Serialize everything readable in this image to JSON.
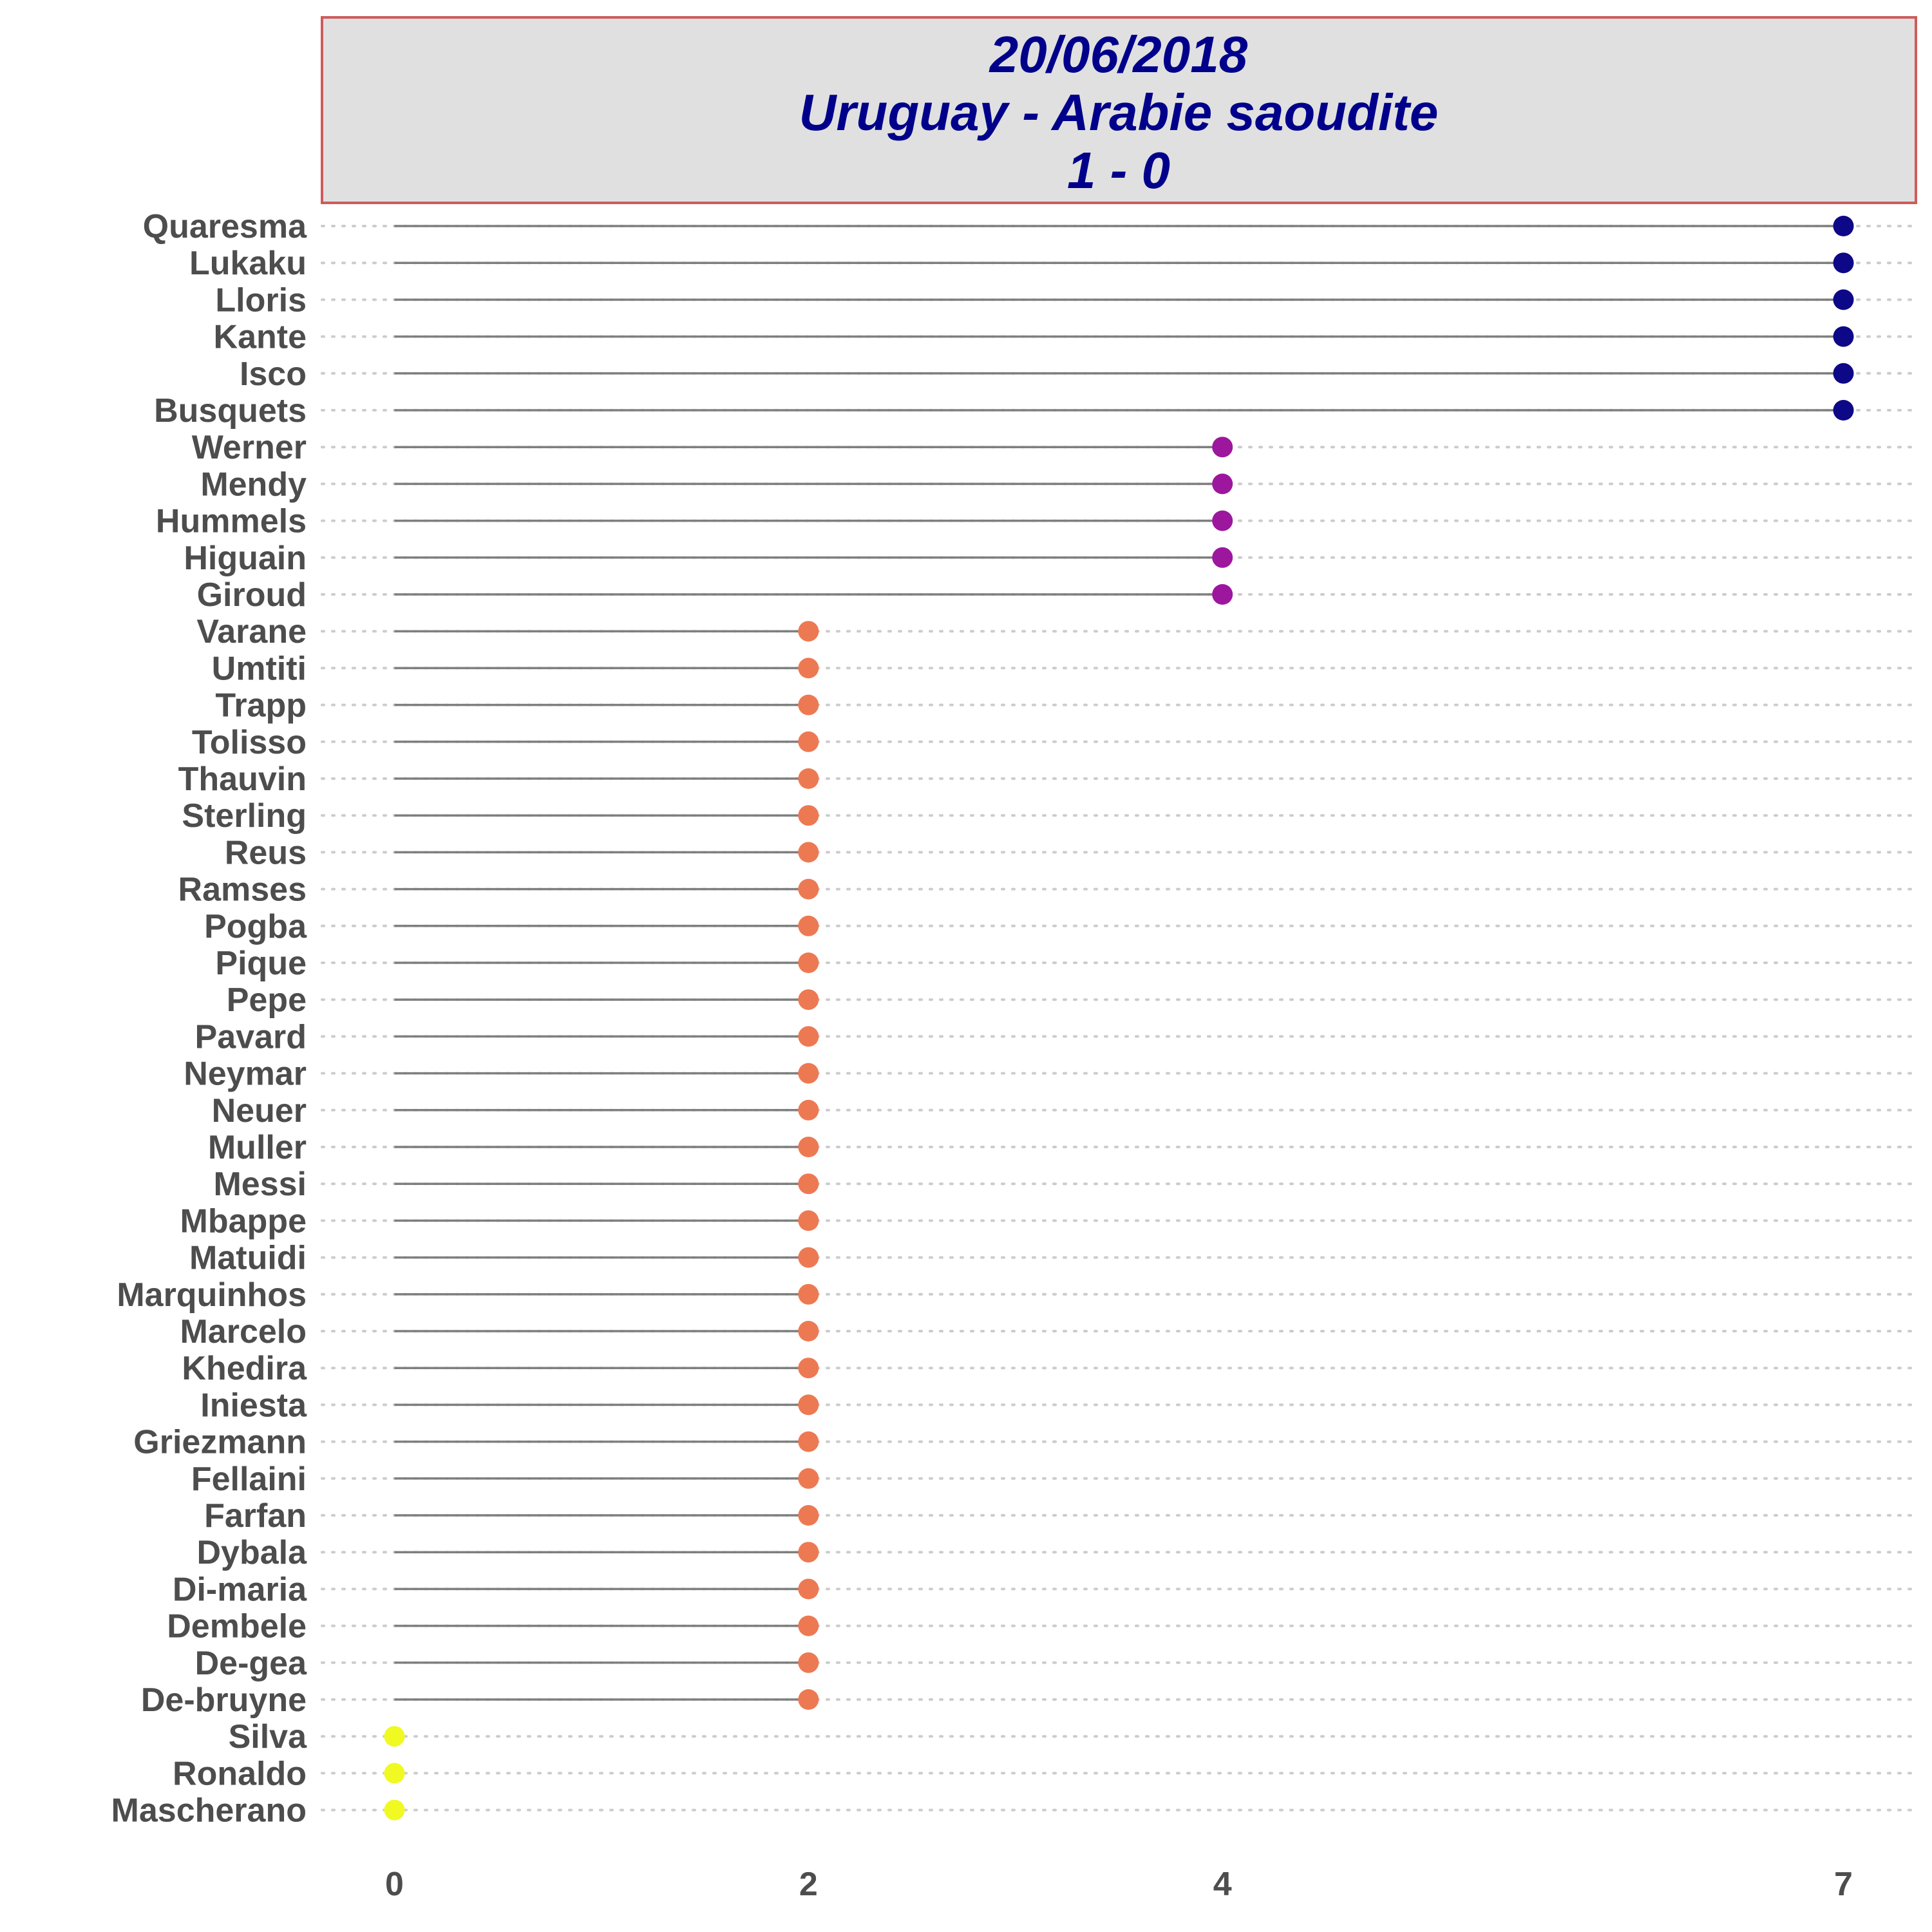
{
  "colors": {
    "title_text": "#00008b",
    "title_box_fill": "#e0e0e0",
    "title_box_border": "#cd5c5c",
    "stem": "#7f7f7f",
    "gridline": "#cccccc",
    "label": "#4d4d4d",
    "value_colors": {
      "7": "#0d0887",
      "4": "#9c179e",
      "2": "#ed7953",
      "0": "#f0f921"
    }
  },
  "chart_data": {
    "type": "lollipop",
    "title_lines": [
      "20/06/2018",
      "Uruguay - Arabie saoudite",
      "1 - 0"
    ],
    "xlabel": "",
    "ylabel": "",
    "x_ticks": [
      0,
      2,
      4,
      7
    ],
    "xlim": [
      -0.35,
      7.35
    ],
    "grid": "dotted horizontal",
    "legend": "none",
    "points": [
      {
        "name": "Quaresma",
        "value": 7
      },
      {
        "name": "Lukaku",
        "value": 7
      },
      {
        "name": "Lloris",
        "value": 7
      },
      {
        "name": "Kante",
        "value": 7
      },
      {
        "name": "Isco",
        "value": 7
      },
      {
        "name": "Busquets",
        "value": 7
      },
      {
        "name": "Werner",
        "value": 4
      },
      {
        "name": "Mendy",
        "value": 4
      },
      {
        "name": "Hummels",
        "value": 4
      },
      {
        "name": "Higuain",
        "value": 4
      },
      {
        "name": "Giroud",
        "value": 4
      },
      {
        "name": "Varane",
        "value": 2
      },
      {
        "name": "Umtiti",
        "value": 2
      },
      {
        "name": "Trapp",
        "value": 2
      },
      {
        "name": "Tolisso",
        "value": 2
      },
      {
        "name": "Thauvin",
        "value": 2
      },
      {
        "name": "Sterling",
        "value": 2
      },
      {
        "name": "Reus",
        "value": 2
      },
      {
        "name": "Ramses",
        "value": 2
      },
      {
        "name": "Pogba",
        "value": 2
      },
      {
        "name": "Pique",
        "value": 2
      },
      {
        "name": "Pepe",
        "value": 2
      },
      {
        "name": "Pavard",
        "value": 2
      },
      {
        "name": "Neymar",
        "value": 2
      },
      {
        "name": "Neuer",
        "value": 2
      },
      {
        "name": "Muller",
        "value": 2
      },
      {
        "name": "Messi",
        "value": 2
      },
      {
        "name": "Mbappe",
        "value": 2
      },
      {
        "name": "Matuidi",
        "value": 2
      },
      {
        "name": "Marquinhos",
        "value": 2
      },
      {
        "name": "Marcelo",
        "value": 2
      },
      {
        "name": "Khedira",
        "value": 2
      },
      {
        "name": "Iniesta",
        "value": 2
      },
      {
        "name": "Griezmann",
        "value": 2
      },
      {
        "name": "Fellaini",
        "value": 2
      },
      {
        "name": "Farfan",
        "value": 2
      },
      {
        "name": "Dybala",
        "value": 2
      },
      {
        "name": "Di-maria",
        "value": 2
      },
      {
        "name": "Dembele",
        "value": 2
      },
      {
        "name": "De-gea",
        "value": 2
      },
      {
        "name": "De-bruyne",
        "value": 2
      },
      {
        "name": "Silva",
        "value": 0
      },
      {
        "name": "Ronaldo",
        "value": 0
      },
      {
        "name": "Mascherano",
        "value": 0
      }
    ]
  }
}
